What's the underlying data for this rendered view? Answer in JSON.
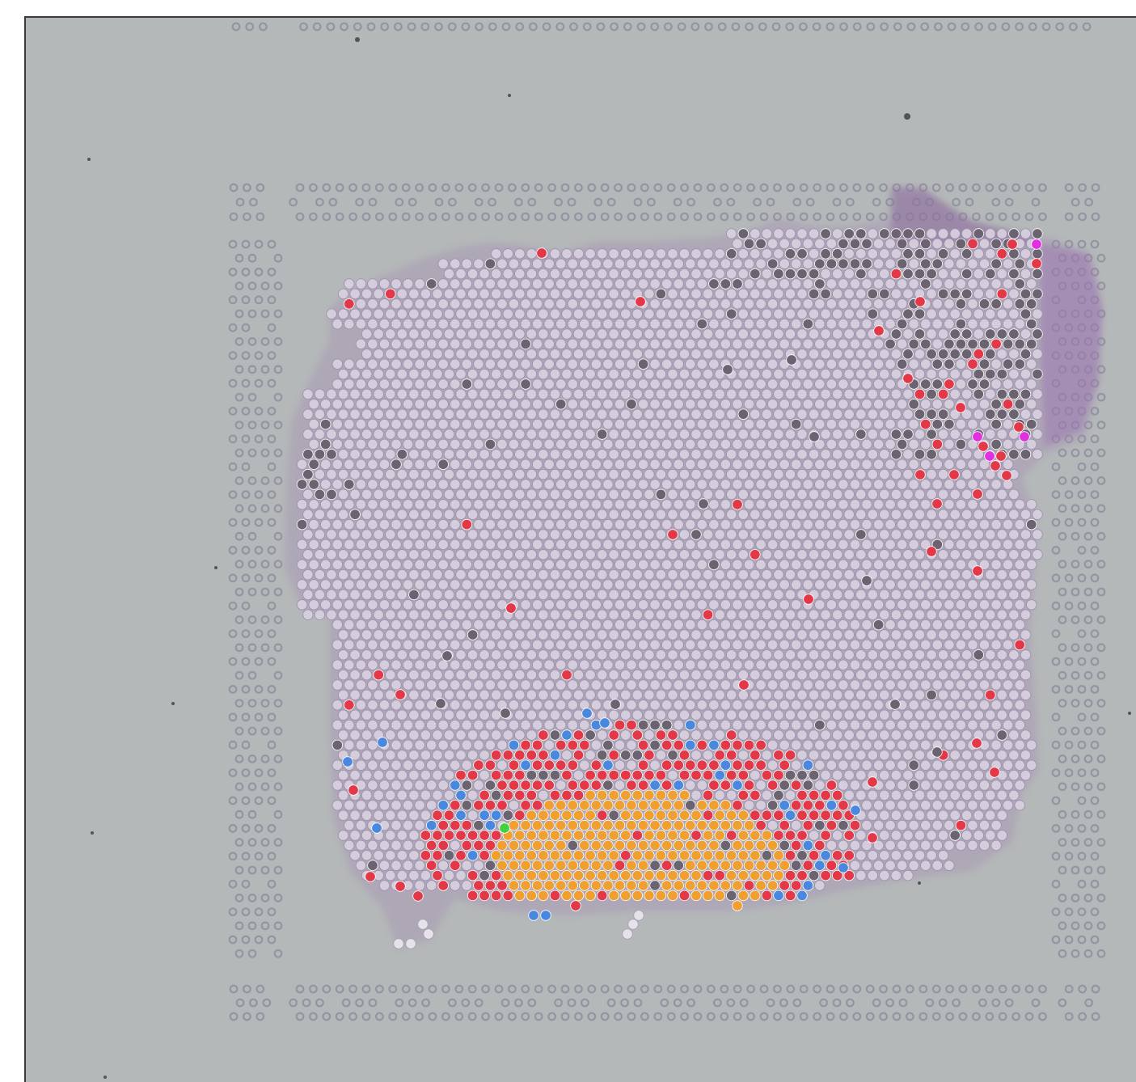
{
  "viewer": {
    "kind": "spatial-transcriptomics-overlay",
    "description_visible_text": ""
  },
  "colors": {
    "background": "#b4b8b8",
    "fiducial": "#8d8f9d",
    "tissue_stain": "#a48ab5",
    "spot_default": "#d8d0de",
    "spot_dark": "#6b6470",
    "spot_red": "#e23848",
    "spot_orange": "#f0a030",
    "spot_blue": "#4a88e0",
    "spot_magenta": "#e030e0",
    "spot_green": "#40d040"
  }
}
